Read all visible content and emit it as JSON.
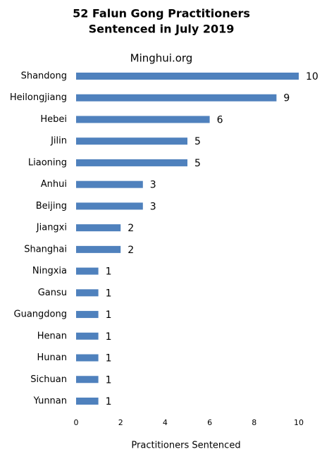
{
  "chart_data": {
    "type": "barh",
    "title": [
      "52 Falun Gong Practitioners",
      "Sentenced in July 2019"
    ],
    "subtitle": "Minghui.org",
    "xlabel": "Practitioners Sentenced",
    "categories": [
      "Shandong",
      "Heilongjiang",
      "Hebei",
      "Jilin",
      "Liaoning",
      "Anhui",
      "Beijing",
      "Jiangxi",
      "Shanghai",
      "Ningxia",
      "Gansu",
      "Guangdong",
      "Henan",
      "Hunan",
      "Sichuan",
      "Yunnan"
    ],
    "values": [
      10,
      9,
      6,
      5,
      5,
      3,
      3,
      2,
      2,
      1,
      1,
      1,
      1,
      1,
      1,
      1
    ],
    "color": "#4f81bd",
    "xlim": [
      0,
      10
    ],
    "xticks": [
      0,
      2,
      4,
      6,
      8,
      10
    ],
    "grid": false
  }
}
